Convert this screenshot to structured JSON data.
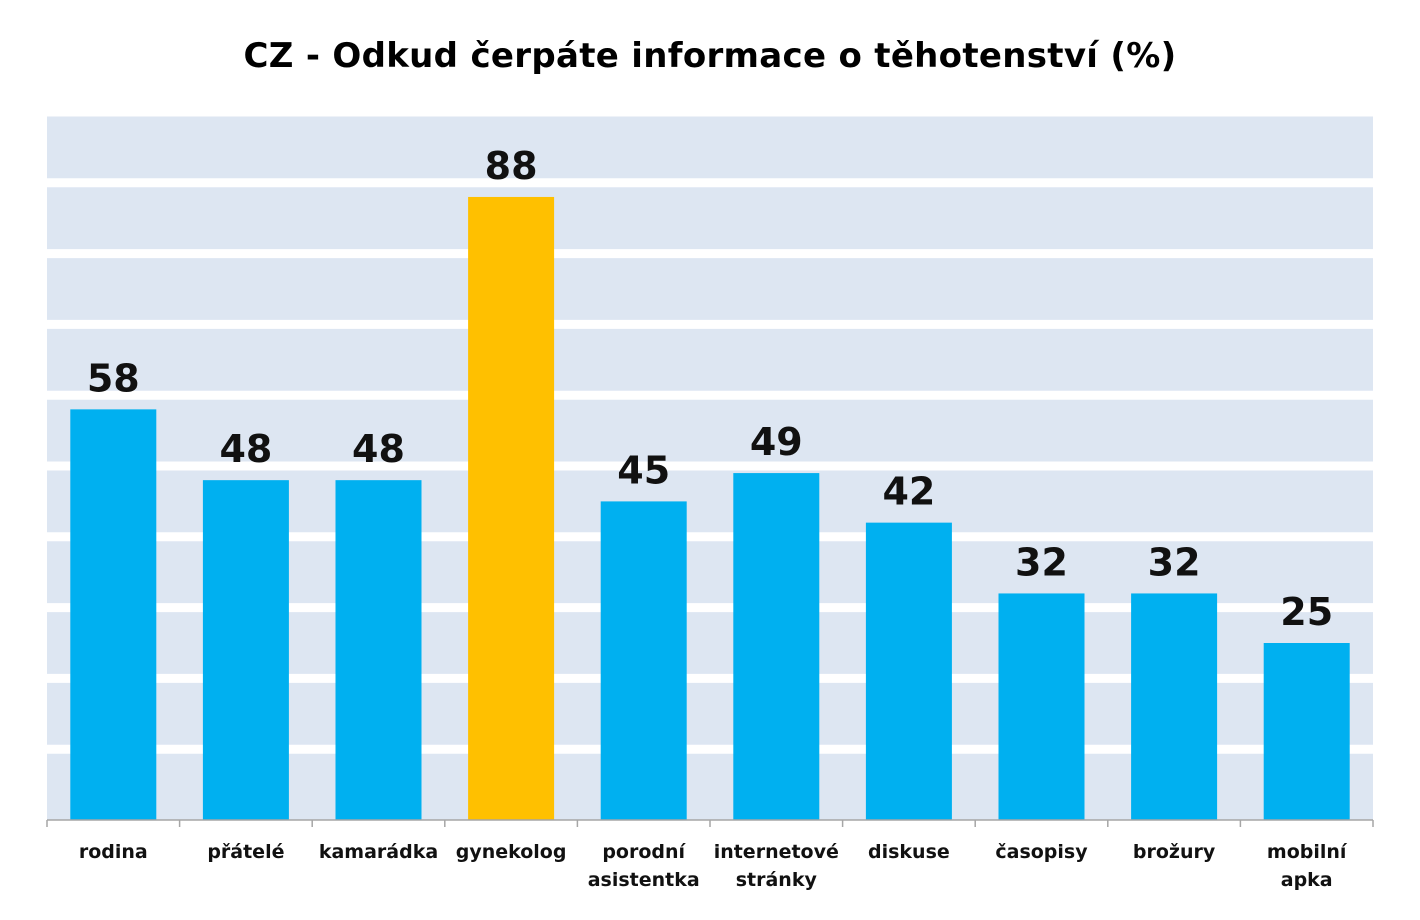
{
  "chart_data": {
    "type": "bar",
    "title": "CZ - Odkud čerpáte informace o těhotenství (%)",
    "xlabel": "",
    "ylabel": "",
    "categories": [
      [
        "rodina"
      ],
      [
        "přátelé"
      ],
      [
        "kamarádka"
      ],
      [
        "gynekolog"
      ],
      [
        "porodní",
        "asistentka"
      ],
      [
        "internetové",
        "stránky"
      ],
      [
        "diskuse"
      ],
      [
        "časopisy"
      ],
      [
        "brožury"
      ],
      [
        "mobilní",
        "apka"
      ]
    ],
    "values": [
      58,
      48,
      48,
      88,
      45,
      49,
      42,
      32,
      32,
      25
    ],
    "data_labels": [
      "58",
      "48",
      "48",
      "88",
      "45",
      "49",
      "42",
      "32",
      "32",
      "25"
    ],
    "highlight_index": 3,
    "ylim": [
      0,
      100
    ],
    "y_gridlines": [
      10,
      20,
      30,
      40,
      50,
      60,
      70,
      80,
      90,
      100
    ],
    "grid": true,
    "legend": "none",
    "colors": {
      "bar": "#00b0f0",
      "highlight": "#ffc000",
      "plot_band": "#dde6f2",
      "gridline": "#ffffff",
      "axis": "#a6a6a6",
      "text": "#111111"
    }
  }
}
